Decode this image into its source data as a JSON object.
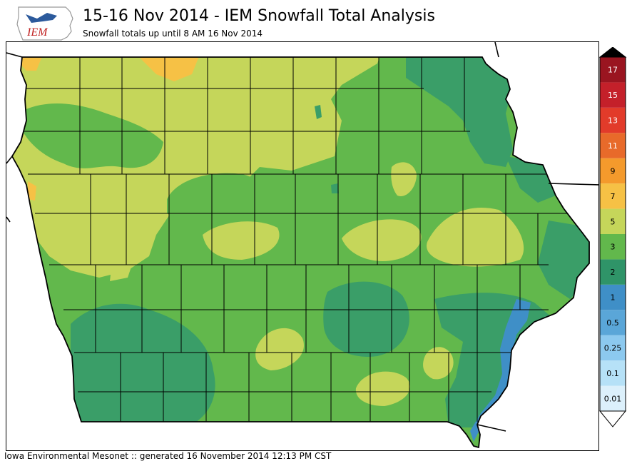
{
  "header": {
    "logo_text": "IEM",
    "title": "15-16 Nov 2014 - IEM Snowfall Total Analysis",
    "subtitle": "Snowfall totals up until 8 AM 16 Nov 2014"
  },
  "footer": {
    "credit": "Iowa Environmental Mesonet :: generated 16 November 2014 12:13 PM CST"
  },
  "colors": {
    "water": "#3f8fc7",
    "lt1": "#2f9468",
    "c1to2": "#3a9e68",
    "c2to3": "#62b84c",
    "c3to5": "#c5d65a",
    "c5to7": "#f6c145",
    "c7to9": "#f49a2c",
    "county_line": "#000000"
  },
  "legend": {
    "levels": [
      {
        "label": "0.01",
        "color": "#dcf0fb"
      },
      {
        "label": "0.1",
        "color": "#b6e1f7"
      },
      {
        "label": "0.25",
        "color": "#8cc9ef"
      },
      {
        "label": "0.5",
        "color": "#5aa6d8"
      },
      {
        "label": "1",
        "color": "#3f8fc7"
      },
      {
        "label": "2",
        "color": "#2f9468"
      },
      {
        "label": "3",
        "color": "#62b84c"
      },
      {
        "label": "5",
        "color": "#c5d65a"
      },
      {
        "label": "7",
        "color": "#f6c145"
      },
      {
        "label": "9",
        "color": "#f49a2c"
      },
      {
        "label": "11",
        "color": "#e86a2a"
      },
      {
        "label": "13",
        "color": "#e23b2a"
      },
      {
        "label": "15",
        "color": "#c4202a"
      },
      {
        "label": "17",
        "color": "#9a1520"
      }
    ],
    "over_color": "#000000",
    "under_color": "#ffffff"
  }
}
